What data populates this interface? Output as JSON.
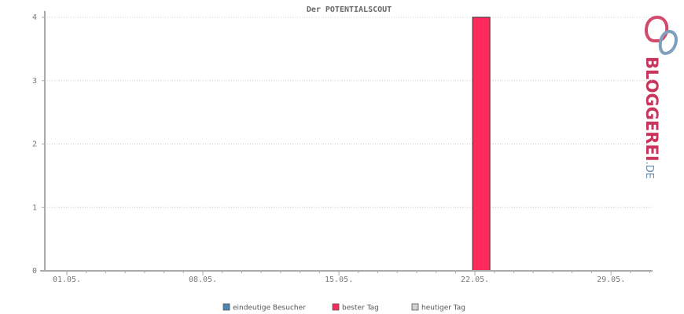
{
  "chart_data": {
    "type": "bar",
    "title": "Der POTENTIALSCOUT",
    "categories": [
      "01.05.",
      null,
      null,
      null,
      null,
      null,
      null,
      "08.05.",
      null,
      null,
      null,
      null,
      null,
      null,
      "15.05.",
      null,
      null,
      null,
      null,
      null,
      null,
      "22.05.",
      null,
      null,
      null,
      null,
      null,
      null,
      "29.05.",
      null,
      null
    ],
    "series": [
      {
        "name": "eindeutige Besucher",
        "color": "#4a86b0",
        "values": [
          0,
          0,
          0,
          0,
          0,
          0,
          0,
          0,
          0,
          0,
          0,
          0,
          0,
          0,
          0,
          0,
          0,
          0,
          0,
          0,
          0,
          0,
          0,
          0,
          0,
          0,
          0,
          0,
          0,
          0,
          0
        ]
      },
      {
        "name": "bester Tag",
        "color": "#ff2a5c",
        "values": [
          null,
          null,
          null,
          null,
          null,
          null,
          null,
          null,
          null,
          null,
          null,
          null,
          null,
          null,
          null,
          null,
          null,
          null,
          null,
          null,
          null,
          4,
          null,
          null,
          null,
          null,
          null,
          null,
          null,
          null,
          null
        ]
      },
      {
        "name": "heutiger Tag",
        "color": "#d0d0d0",
        "values": [
          null,
          null,
          null,
          null,
          null,
          null,
          null,
          null,
          null,
          null,
          null,
          null,
          null,
          null,
          null,
          null,
          null,
          null,
          null,
          null,
          null,
          null,
          null,
          null,
          null,
          null,
          null,
          null,
          null,
          null,
          null
        ]
      }
    ],
    "ylim": [
      0,
      4
    ],
    "yticks": [
      0,
      1,
      2,
      3,
      4
    ],
    "grid": true,
    "logo": {
      "name": "BLOGGEREI",
      "suffix": ".DE"
    }
  }
}
